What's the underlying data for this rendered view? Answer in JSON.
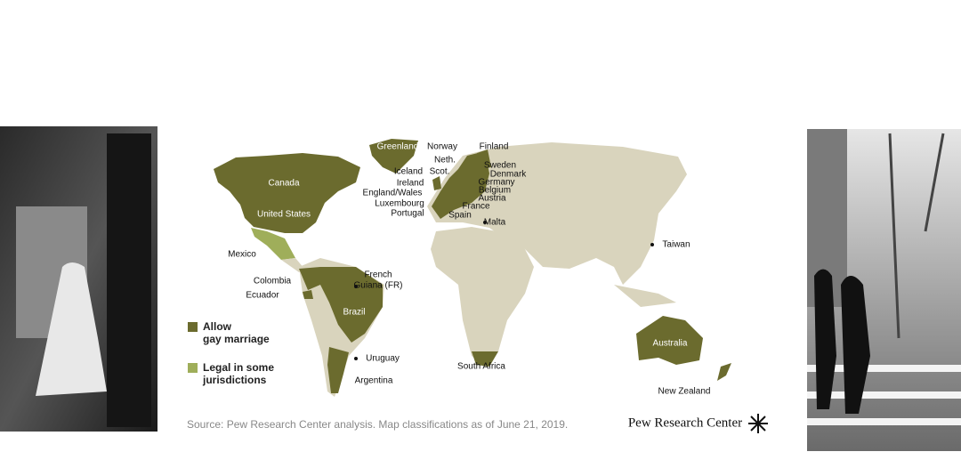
{
  "map": {
    "labels": [
      "Greenland",
      "Norway",
      "Finland",
      "Neth.",
      "Sweden",
      "Iceland",
      "Scot.",
      "Denmark",
      "Ireland",
      "Germany",
      "England/Wales",
      "Belgium",
      "Austria",
      "Luxembourg",
      "France",
      "Portugal",
      "Spain",
      "Malta",
      "Taiwan",
      "Mexico",
      "French",
      "Guiana (FR)",
      "Colombia",
      "Ecuador",
      "Brazil",
      "Uruguay",
      "South Africa",
      "Argentina",
      "Australia",
      "New Zealand",
      "Canada",
      "United States"
    ]
  },
  "legend": {
    "items": [
      {
        "lines": [
          "Allow",
          "gay marriage"
        ]
      },
      {
        "lines": [
          "Legal in some",
          "jurisdictions"
        ]
      }
    ]
  },
  "footer": {
    "source": "Source: Pew Research Center analysis. Map classifications as of June 21, 2019.",
    "brand": "Pew Research Center"
  }
}
